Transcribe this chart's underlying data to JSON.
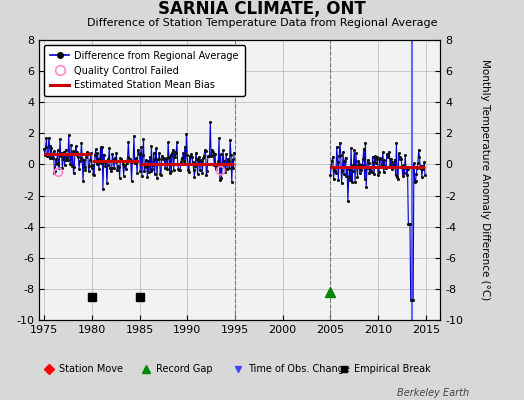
{
  "title": "SARNIA CLIMATE, ONT",
  "subtitle": "Difference of Station Temperature Data from Regional Average",
  "ylabel": "Monthly Temperature Anomaly Difference (°C)",
  "xlim": [
    1974.5,
    2016.5
  ],
  "ylim": [
    -10,
    8
  ],
  "yticks": [
    -10,
    -8,
    -6,
    -4,
    -2,
    0,
    2,
    4,
    6,
    8
  ],
  "xticks": [
    1975,
    1980,
    1985,
    1990,
    1995,
    2000,
    2005,
    2010,
    2015
  ],
  "bg_color": "#d8d8d8",
  "plot_bg_color": "#f2f2f2",
  "grid_color": "#bbbbbb",
  "line_color": "#0000cc",
  "bias_color": "#cc0000",
  "empirical_break_years": [
    1980,
    1985
  ],
  "record_gap_years": [
    2005
  ],
  "vertical_line_years": [
    1995,
    2005
  ],
  "vertical_break_year": 2013.5,
  "watermark": "Berkeley Earth"
}
